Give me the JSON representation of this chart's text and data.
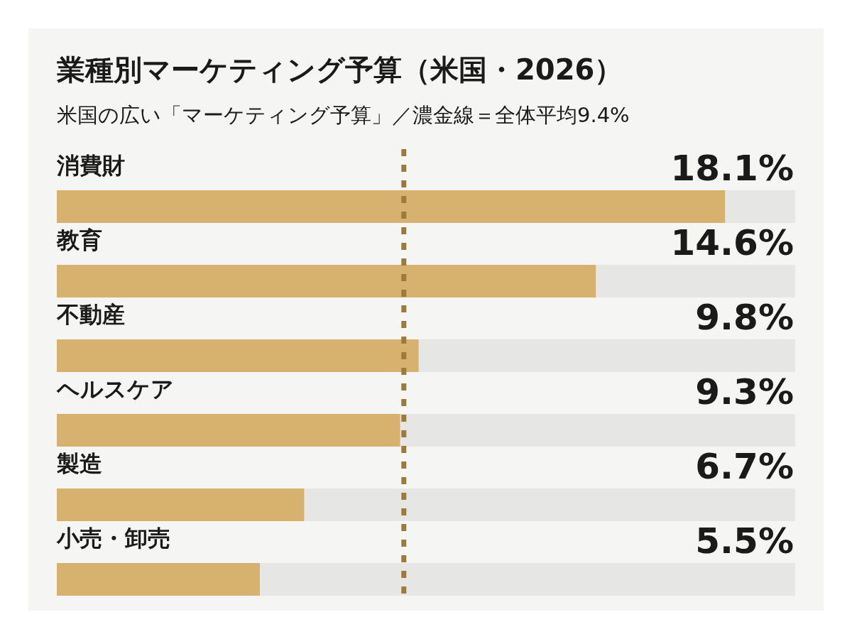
{
  "chart_data": {
    "type": "bar",
    "orientation": "horizontal",
    "title": "業種別マーケティング予算（米国・2026）",
    "subtitle": "米国の広い「マーケティング予算」／濃金線＝全体平均9.4%",
    "categories": [
      "消費財",
      "教育",
      "不動産",
      "ヘルスケア",
      "製造",
      "小売・卸売"
    ],
    "values": [
      18.1,
      14.6,
      9.8,
      9.3,
      6.7,
      5.5
    ],
    "value_labels": [
      "18.1%",
      "14.6%",
      "9.8%",
      "9.3%",
      "6.7%",
      "5.5%"
    ],
    "color": "#d6b26e",
    "xlim": [
      0,
      20
    ],
    "ref_lines": [
      {
        "axis": "x",
        "value": 9.4,
        "color": "#9c7a3a",
        "line_style": "dashed"
      }
    ]
  }
}
